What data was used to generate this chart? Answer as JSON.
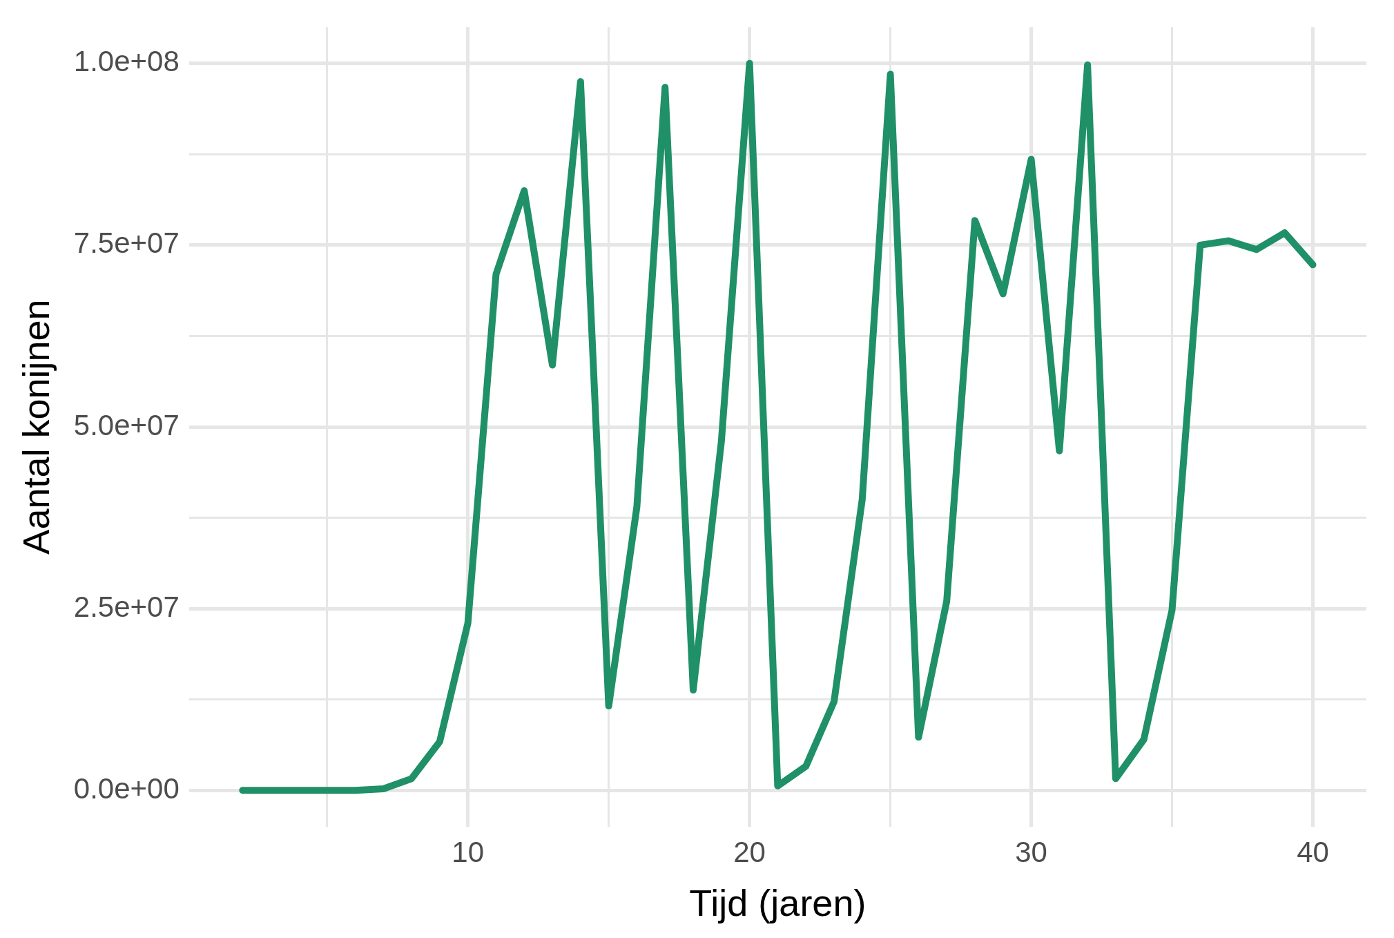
{
  "chart_data": {
    "type": "line",
    "xlabel": "Tijd (jaren)",
    "ylabel": "Aantal konijnen",
    "x": [
      2,
      3,
      4,
      5,
      6,
      7,
      8,
      9,
      10,
      11,
      12,
      13,
      14,
      15,
      16,
      17,
      18,
      19,
      20,
      21,
      22,
      23,
      24,
      25,
      26,
      27,
      28,
      29,
      30,
      31,
      32,
      33,
      34,
      35,
      36,
      37,
      38,
      39,
      40
    ],
    "series": [
      {
        "color": "#1f9068",
        "values": [
          0,
          0,
          0,
          0,
          0,
          200000,
          1600000,
          6700000,
          23000000,
          71000000,
          82500000,
          58500000,
          97500000,
          11600000,
          39000000,
          96700000,
          13800000,
          48000000,
          100000000,
          600000,
          3300000,
          12200000,
          40000000,
          98500000,
          7300000,
          26000000,
          78400000,
          68300000,
          86800000,
          46700000,
          99800000,
          1600000,
          7000000,
          24800000,
          75000000,
          75600000,
          74400000,
          76700000,
          72300000
        ]
      }
    ],
    "xlim": [
      0.1,
      41.9
    ],
    "xticks": [
      {
        "value": 5,
        "label": null
      },
      10,
      {
        "value": 15,
        "label": null
      },
      20,
      {
        "value": 25,
        "label": null
      },
      30,
      {
        "value": 35,
        "label": null
      },
      40
    ],
    "ylim": [
      -5000000,
      105000000
    ],
    "yticks": [
      {
        "value": 0,
        "label": "0.0e+00"
      },
      {
        "value": 12500000,
        "label": null
      },
      {
        "value": 25000000,
        "label": "2.5e+07"
      },
      {
        "value": 37500000,
        "label": null
      },
      {
        "value": 50000000,
        "label": "5.0e+07"
      },
      {
        "value": 62500000,
        "label": null
      },
      {
        "value": 75000000,
        "label": "7.5e+07"
      },
      {
        "value": 87500000,
        "label": null
      },
      {
        "value": 100000000,
        "label": "1.0e+08"
      }
    ],
    "grid": true,
    "legend": false,
    "marker": "none",
    "line_style": "solid"
  }
}
